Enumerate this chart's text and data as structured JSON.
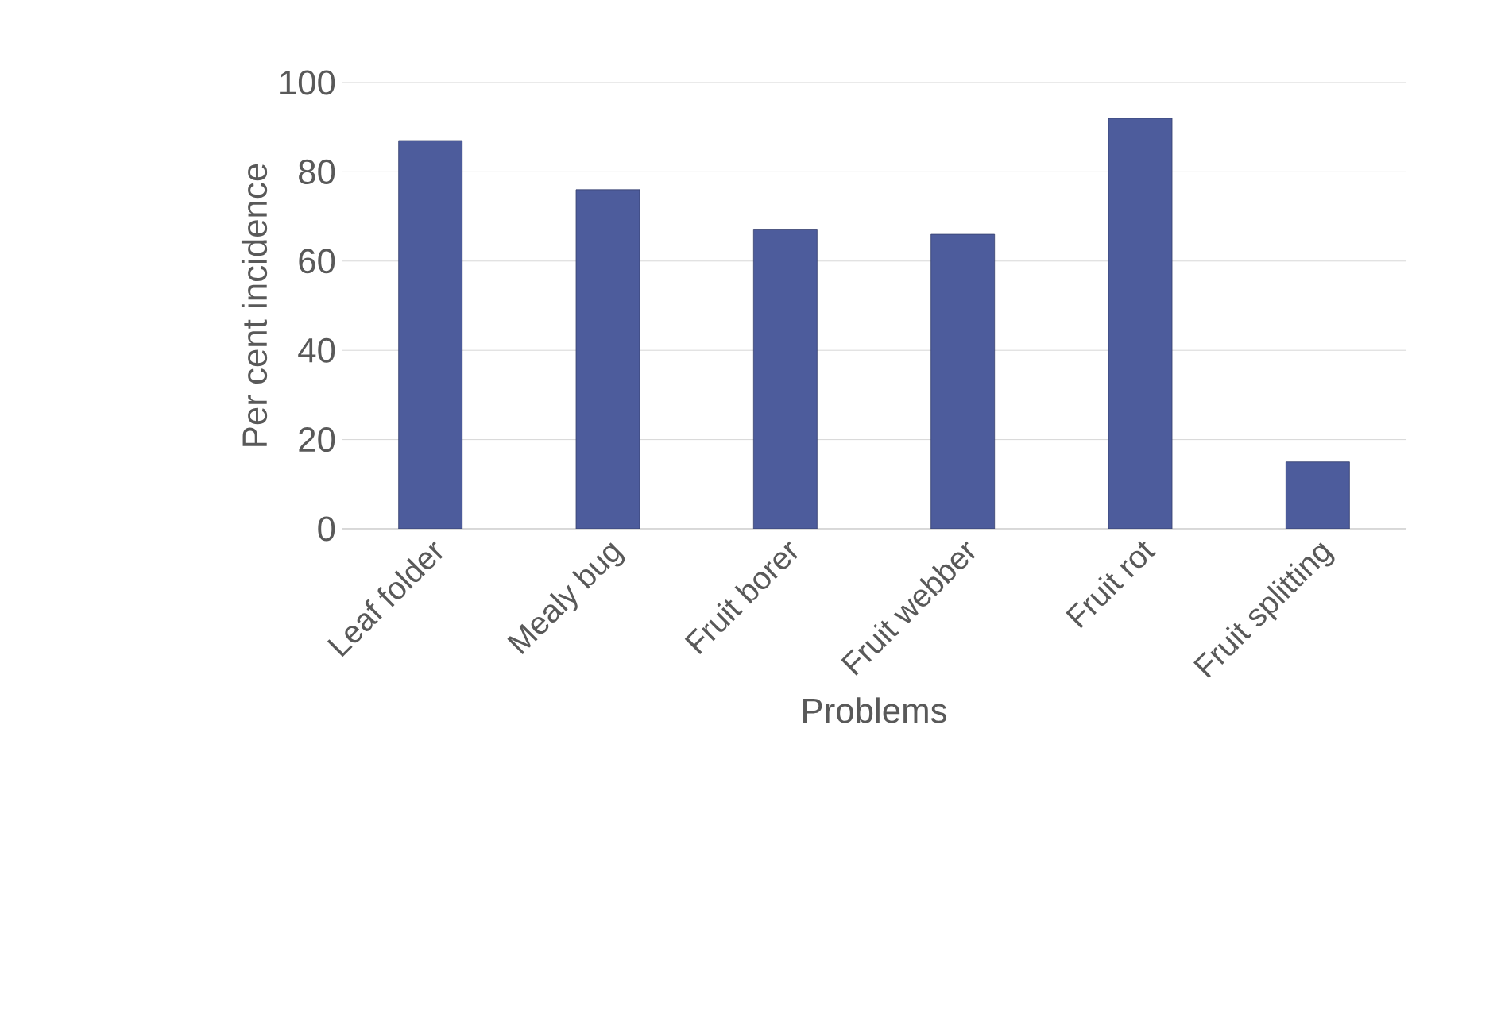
{
  "chart_data": {
    "type": "bar",
    "xlabel": "Problems",
    "ylabel": "Per cent incidence",
    "categories": [
      "Leaf folder",
      "Mealy bug",
      "Fruit borer",
      "Fruit webber",
      "Fruit rot",
      "Fruit splitting"
    ],
    "values": [
      87,
      76,
      67,
      66,
      92,
      15
    ],
    "color": "#4d5c9c",
    "ylim": [
      0,
      100
    ],
    "yticks": [
      0,
      20,
      40,
      60,
      80,
      100
    ],
    "grid": "y"
  }
}
